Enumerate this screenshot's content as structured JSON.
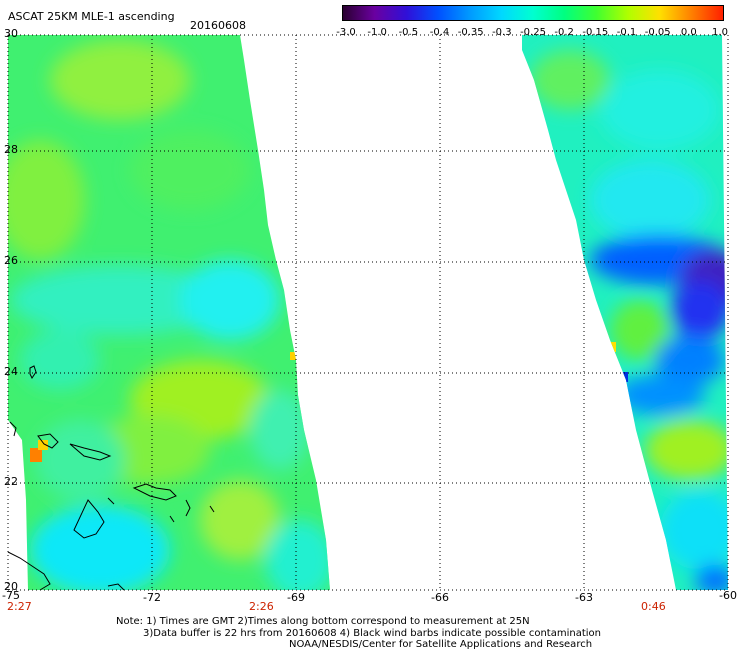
{
  "header": {
    "title": "ASCAT 25KM MLE-1 ascending",
    "date": "20160608"
  },
  "colorbar": {
    "labels": [
      "-3.0",
      "-1.0",
      "-0.5",
      "-0.4",
      "-0.35",
      "-0.3",
      "-0.25",
      "-0.2",
      "-0.15",
      "-0.1",
      "-0.05",
      "0.0",
      "1.0"
    ],
    "colors": [
      "#2a0030",
      "#6a00a0",
      "#3010d8",
      "#0050ff",
      "#0099ff",
      "#00d8ff",
      "#00ffd0",
      "#00ff80",
      "#40ff30",
      "#b0ff00",
      "#ffe000",
      "#ff8000",
      "#ff2000"
    ]
  },
  "axes": {
    "y_labels": [
      "30",
      "28",
      "26",
      "24",
      "22",
      "20"
    ],
    "x_labels": [
      "-75",
      "-72",
      "-69",
      "-66",
      "-63",
      "-60"
    ],
    "lat_range": [
      20,
      30
    ],
    "lon_range": [
      -75,
      -60
    ]
  },
  "times": {
    "t1": "2:27",
    "t2": "2:26",
    "t3": "0:46"
  },
  "notes": {
    "line1": "Note: 1) Times are GMT 2)Times along bottom correspond to measurement at 25N",
    "line2": "3)Data buffer is 22 hrs from 20160608 4) Black wind barbs indicate possible contamination",
    "line3": "NOAA/NESDIS/Center for Satellite Applications and Research"
  }
}
